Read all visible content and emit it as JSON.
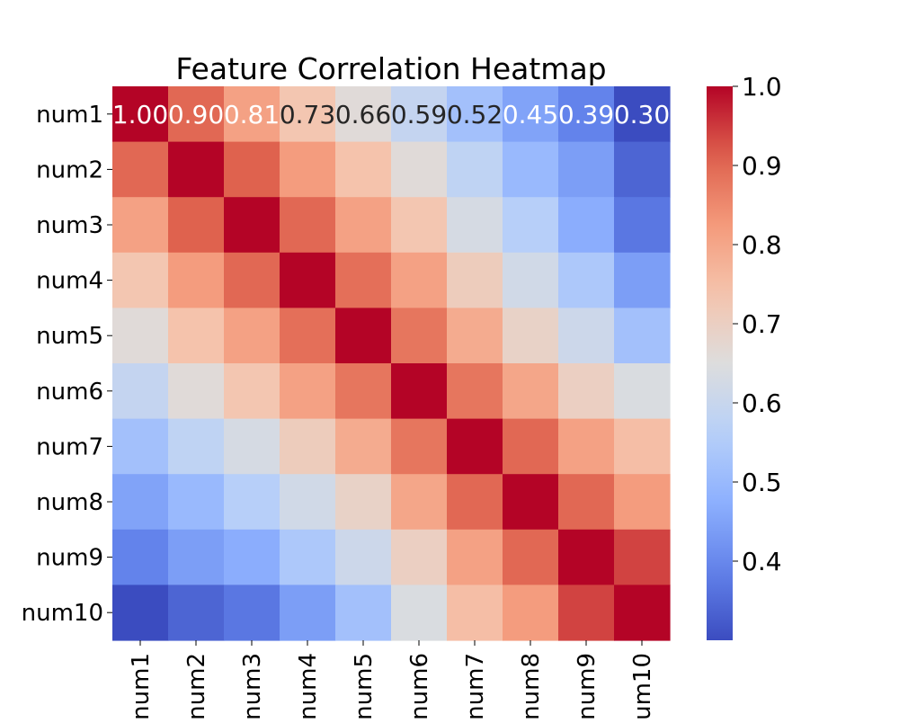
{
  "chart_data": {
    "type": "heatmap",
    "title": "Feature Correlation Heatmap",
    "row_labels": [
      "num1",
      "num2",
      "num3",
      "num4",
      "num5",
      "num6",
      "num7",
      "num8",
      "num9",
      "num10"
    ],
    "col_labels": [
      "num1",
      "num2",
      "num3",
      "num4",
      "num5",
      "num6",
      "num7",
      "num8",
      "num9",
      "num10"
    ],
    "values": [
      [
        1.0,
        0.9,
        0.81,
        0.73,
        0.66,
        0.59,
        0.52,
        0.45,
        0.39,
        0.3
      ],
      [
        0.9,
        1.0,
        0.91,
        0.82,
        0.74,
        0.66,
        0.58,
        0.5,
        0.44,
        0.34
      ],
      [
        0.81,
        0.91,
        1.0,
        0.9,
        0.81,
        0.73,
        0.63,
        0.56,
        0.47,
        0.37
      ],
      [
        0.73,
        0.82,
        0.9,
        1.0,
        0.89,
        0.81,
        0.71,
        0.62,
        0.54,
        0.44
      ],
      [
        0.66,
        0.74,
        0.81,
        0.89,
        1.0,
        0.88,
        0.79,
        0.69,
        0.61,
        0.52
      ],
      [
        0.59,
        0.66,
        0.73,
        0.81,
        0.88,
        1.0,
        0.88,
        0.8,
        0.7,
        0.64
      ],
      [
        0.52,
        0.58,
        0.63,
        0.71,
        0.79,
        0.88,
        1.0,
        0.9,
        0.81,
        0.75
      ],
      [
        0.45,
        0.5,
        0.56,
        0.62,
        0.69,
        0.8,
        0.9,
        1.0,
        0.9,
        0.82
      ],
      [
        0.39,
        0.44,
        0.47,
        0.54,
        0.61,
        0.7,
        0.81,
        0.9,
        1.0,
        0.94
      ],
      [
        0.3,
        0.34,
        0.37,
        0.44,
        0.52,
        0.64,
        0.75,
        0.82,
        0.94,
        1.0
      ]
    ],
    "annotated_row": 0,
    "annotation_format": "0.00",
    "colormap": "coolwarm",
    "color_range": [
      0.3,
      1.0
    ],
    "colorbar_ticks": [
      "1.0",
      "0.9",
      "0.8",
      "0.7",
      "0.6",
      "0.5",
      "0.4"
    ],
    "colorbar_tick_values": [
      1.0,
      0.9,
      0.8,
      0.7,
      0.6,
      0.5,
      0.4
    ],
    "xlabel": "",
    "ylabel": "",
    "x_tick_rotation": "vertical",
    "grid": false,
    "legend": "colorbar-right"
  }
}
